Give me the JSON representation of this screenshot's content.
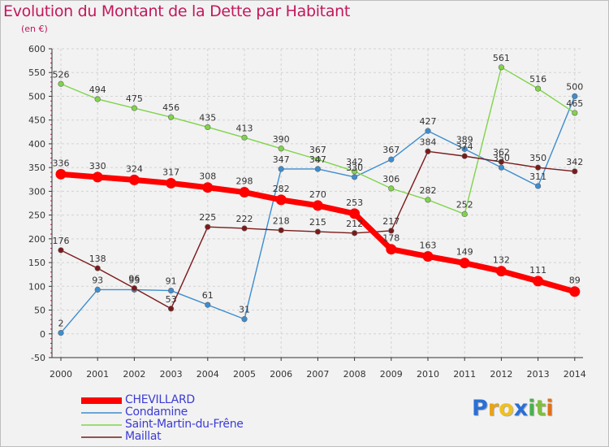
{
  "chart_data": {
    "type": "line",
    "title": "Evolution du Montant de la Dette par Habitant",
    "subtitle": "(en €)",
    "x": [
      "2000",
      "2001",
      "2002",
      "2003",
      "2004",
      "2005",
      "2006",
      "2007",
      "2008",
      "2009",
      "2010",
      "2011",
      "2012",
      "2013",
      "2014"
    ],
    "yticks": [
      600,
      550,
      500,
      450,
      400,
      350,
      300,
      250,
      200,
      150,
      100,
      50,
      0,
      -50
    ],
    "ylim": [
      -50,
      600
    ],
    "grid": true,
    "legend_position": "bottom-left",
    "series": [
      {
        "name": "CHEVILLARD",
        "color": "#ff0000",
        "emphasis": true,
        "values": [
          336,
          330,
          324,
          317,
          308,
          298,
          282,
          270,
          253,
          178,
          163,
          149,
          132,
          111,
          89
        ]
      },
      {
        "name": "Condamine",
        "color": "#3c8dd0",
        "values": [
          2,
          93,
          93,
          91,
          61,
          31,
          347,
          347,
          330,
          367,
          427,
          389,
          350,
          311,
          500
        ]
      },
      {
        "name": "Saint-Martin-du-Frêne",
        "color": "#7fd44a",
        "values": [
          526,
          494,
          475,
          456,
          435,
          413,
          390,
          367,
          342,
          306,
          282,
          252,
          561,
          516,
          465
        ]
      },
      {
        "name": "Maillat",
        "color": "#7b1a1a",
        "values": [
          176,
          138,
          96,
          53,
          225,
          222,
          218,
          215,
          212,
          217,
          384,
          374,
          362,
          350,
          342
        ]
      }
    ]
  },
  "logo": {
    "letters": [
      "P",
      "r",
      "o",
      "x",
      "i",
      "t",
      "i"
    ],
    "colors": [
      "#2a6fd6",
      "#e8a317",
      "#f0c020",
      "#2a6fd6",
      "#4caf50",
      "#7fbf3f",
      "#e0701a"
    ]
  }
}
